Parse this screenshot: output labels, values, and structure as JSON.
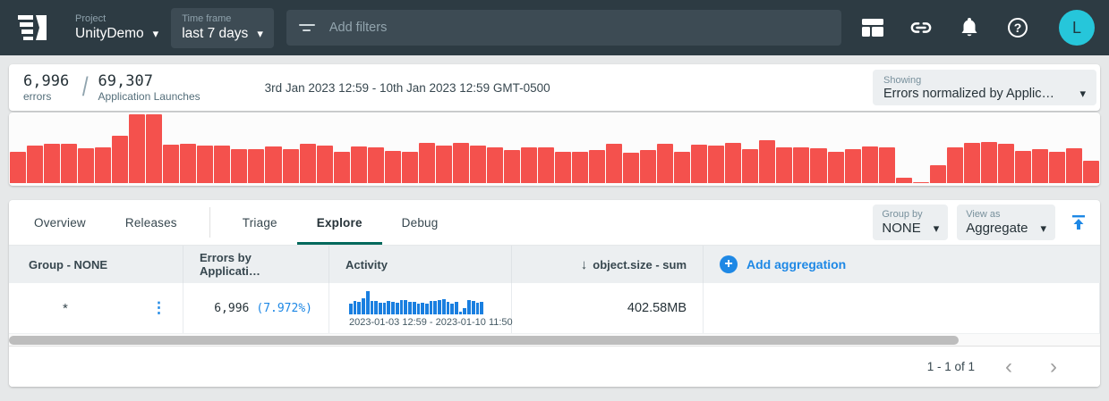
{
  "topbar": {
    "project": {
      "label": "Project",
      "value": "UnityDemo"
    },
    "timeframe": {
      "label": "Time frame",
      "value": "last 7 days"
    },
    "filters_placeholder": "Add filters",
    "avatar_letter": "L",
    "help_glyph": "?"
  },
  "summary": {
    "errors_value": "6,996",
    "errors_label": "errors",
    "slash": "/",
    "launches_value": "69,307",
    "launches_label": "Application Launches",
    "date_range": "3rd Jan 2023 12:59 - 10th Jan 2023 12:59 GMT-0500",
    "showing": {
      "label": "Showing",
      "value": "Errors normalized by Applic…"
    }
  },
  "chart_data": [
    {
      "type": "bar",
      "title": "Errors over time, 3rd Jan 2023 12:59 - 10th Jan 2023 12:59 GMT-0500",
      "color": "#f4514d",
      "ylim": [
        0,
        100
      ],
      "grid": false,
      "values": [
        45,
        55,
        57,
        57,
        51,
        52,
        69,
        100,
        100,
        56,
        57,
        54,
        54,
        50,
        49,
        53,
        49,
        57,
        55,
        45,
        53,
        52,
        47,
        45,
        58,
        54,
        58,
        54,
        52,
        48,
        52,
        52,
        46,
        46,
        48,
        57,
        44,
        48,
        57,
        46,
        56,
        55,
        58,
        50,
        62,
        52,
        52,
        51,
        45,
        49,
        53,
        52,
        8,
        1,
        26,
        52,
        58,
        60,
        57,
        47,
        49,
        46,
        51,
        33
      ]
    },
    {
      "type": "bar",
      "title": "Activity sparkline for group *",
      "color": "#1a7fe0",
      "x_start": "2023-01-03 12:59",
      "x_end": "2023-01-10 11:50",
      "ylim": [
        0,
        100
      ],
      "values": [
        45,
        57,
        51,
        69,
        100,
        57,
        54,
        49,
        49,
        55,
        53,
        47,
        58,
        58,
        52,
        52,
        46,
        48,
        44,
        57,
        56,
        58,
        62,
        52,
        45,
        53,
        8,
        26,
        58,
        57,
        49,
        51
      ]
    }
  ],
  "tabs": {
    "items": [
      "Overview",
      "Releases",
      "Triage",
      "Explore",
      "Debug"
    ],
    "active": "Explore"
  },
  "controls": {
    "group_by": {
      "label": "Group by",
      "value": "NONE"
    },
    "view_as": {
      "label": "View as",
      "value": "Aggregate"
    }
  },
  "table": {
    "columns": [
      {
        "label": "Group - NONE"
      },
      {
        "label": "Errors by Applicati…"
      },
      {
        "label": "Activity"
      },
      {
        "label": "object.size - sum",
        "sort": "desc"
      },
      {
        "label": "Add aggregation",
        "action": true
      }
    ],
    "row": {
      "group": "*",
      "errors_count": "6,996",
      "errors_pct": "(7.972%)",
      "activity_range": "2023-01-03 12:59  -  2023-01-10 11:50",
      "object_size_sum": "402.58MB"
    }
  },
  "pagination": {
    "range": "1 - 1 of 1"
  },
  "icons": {
    "caret_down": "▾",
    "kebab": "⋮",
    "sort_desc": "↓",
    "plus": "+",
    "chevron_left": "‹",
    "chevron_right": "›"
  },
  "colors": {
    "topbar_bg": "#2d3b43",
    "histogram_red": "#f4514d",
    "sparkline_blue": "#1a7fe0",
    "accent_blue": "#1e88e5",
    "active_tab_underline": "#00695c",
    "avatar_cyan": "#26c6da",
    "header_bg": "#eceff1"
  }
}
